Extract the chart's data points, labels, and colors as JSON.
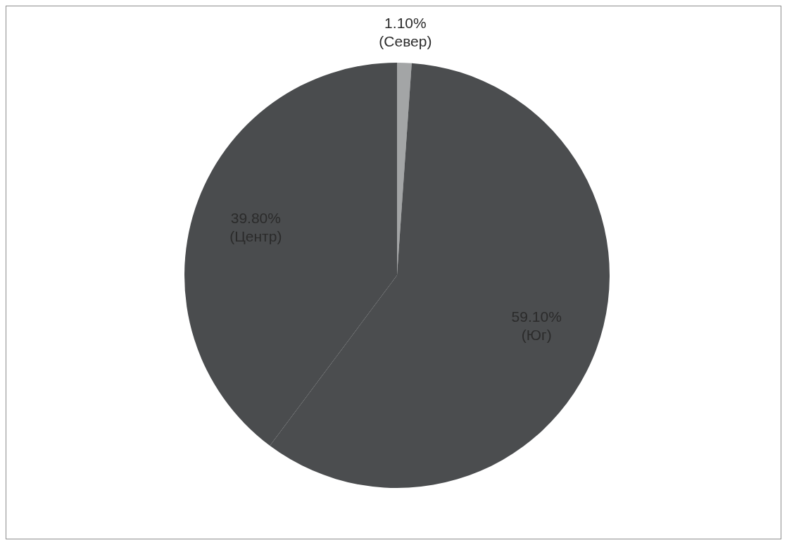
{
  "chart_data": {
    "type": "pie",
    "categories": [
      "(Север)",
      "(Юг)",
      "(Центр)"
    ],
    "values": [
      1.1,
      59.1,
      39.8
    ],
    "value_labels": [
      "1.10%",
      "59.10%",
      "39.80%"
    ],
    "colors": [
      "#a3a5a6",
      "#4b4d4f",
      "#4a4c4e"
    ],
    "legend": false
  }
}
